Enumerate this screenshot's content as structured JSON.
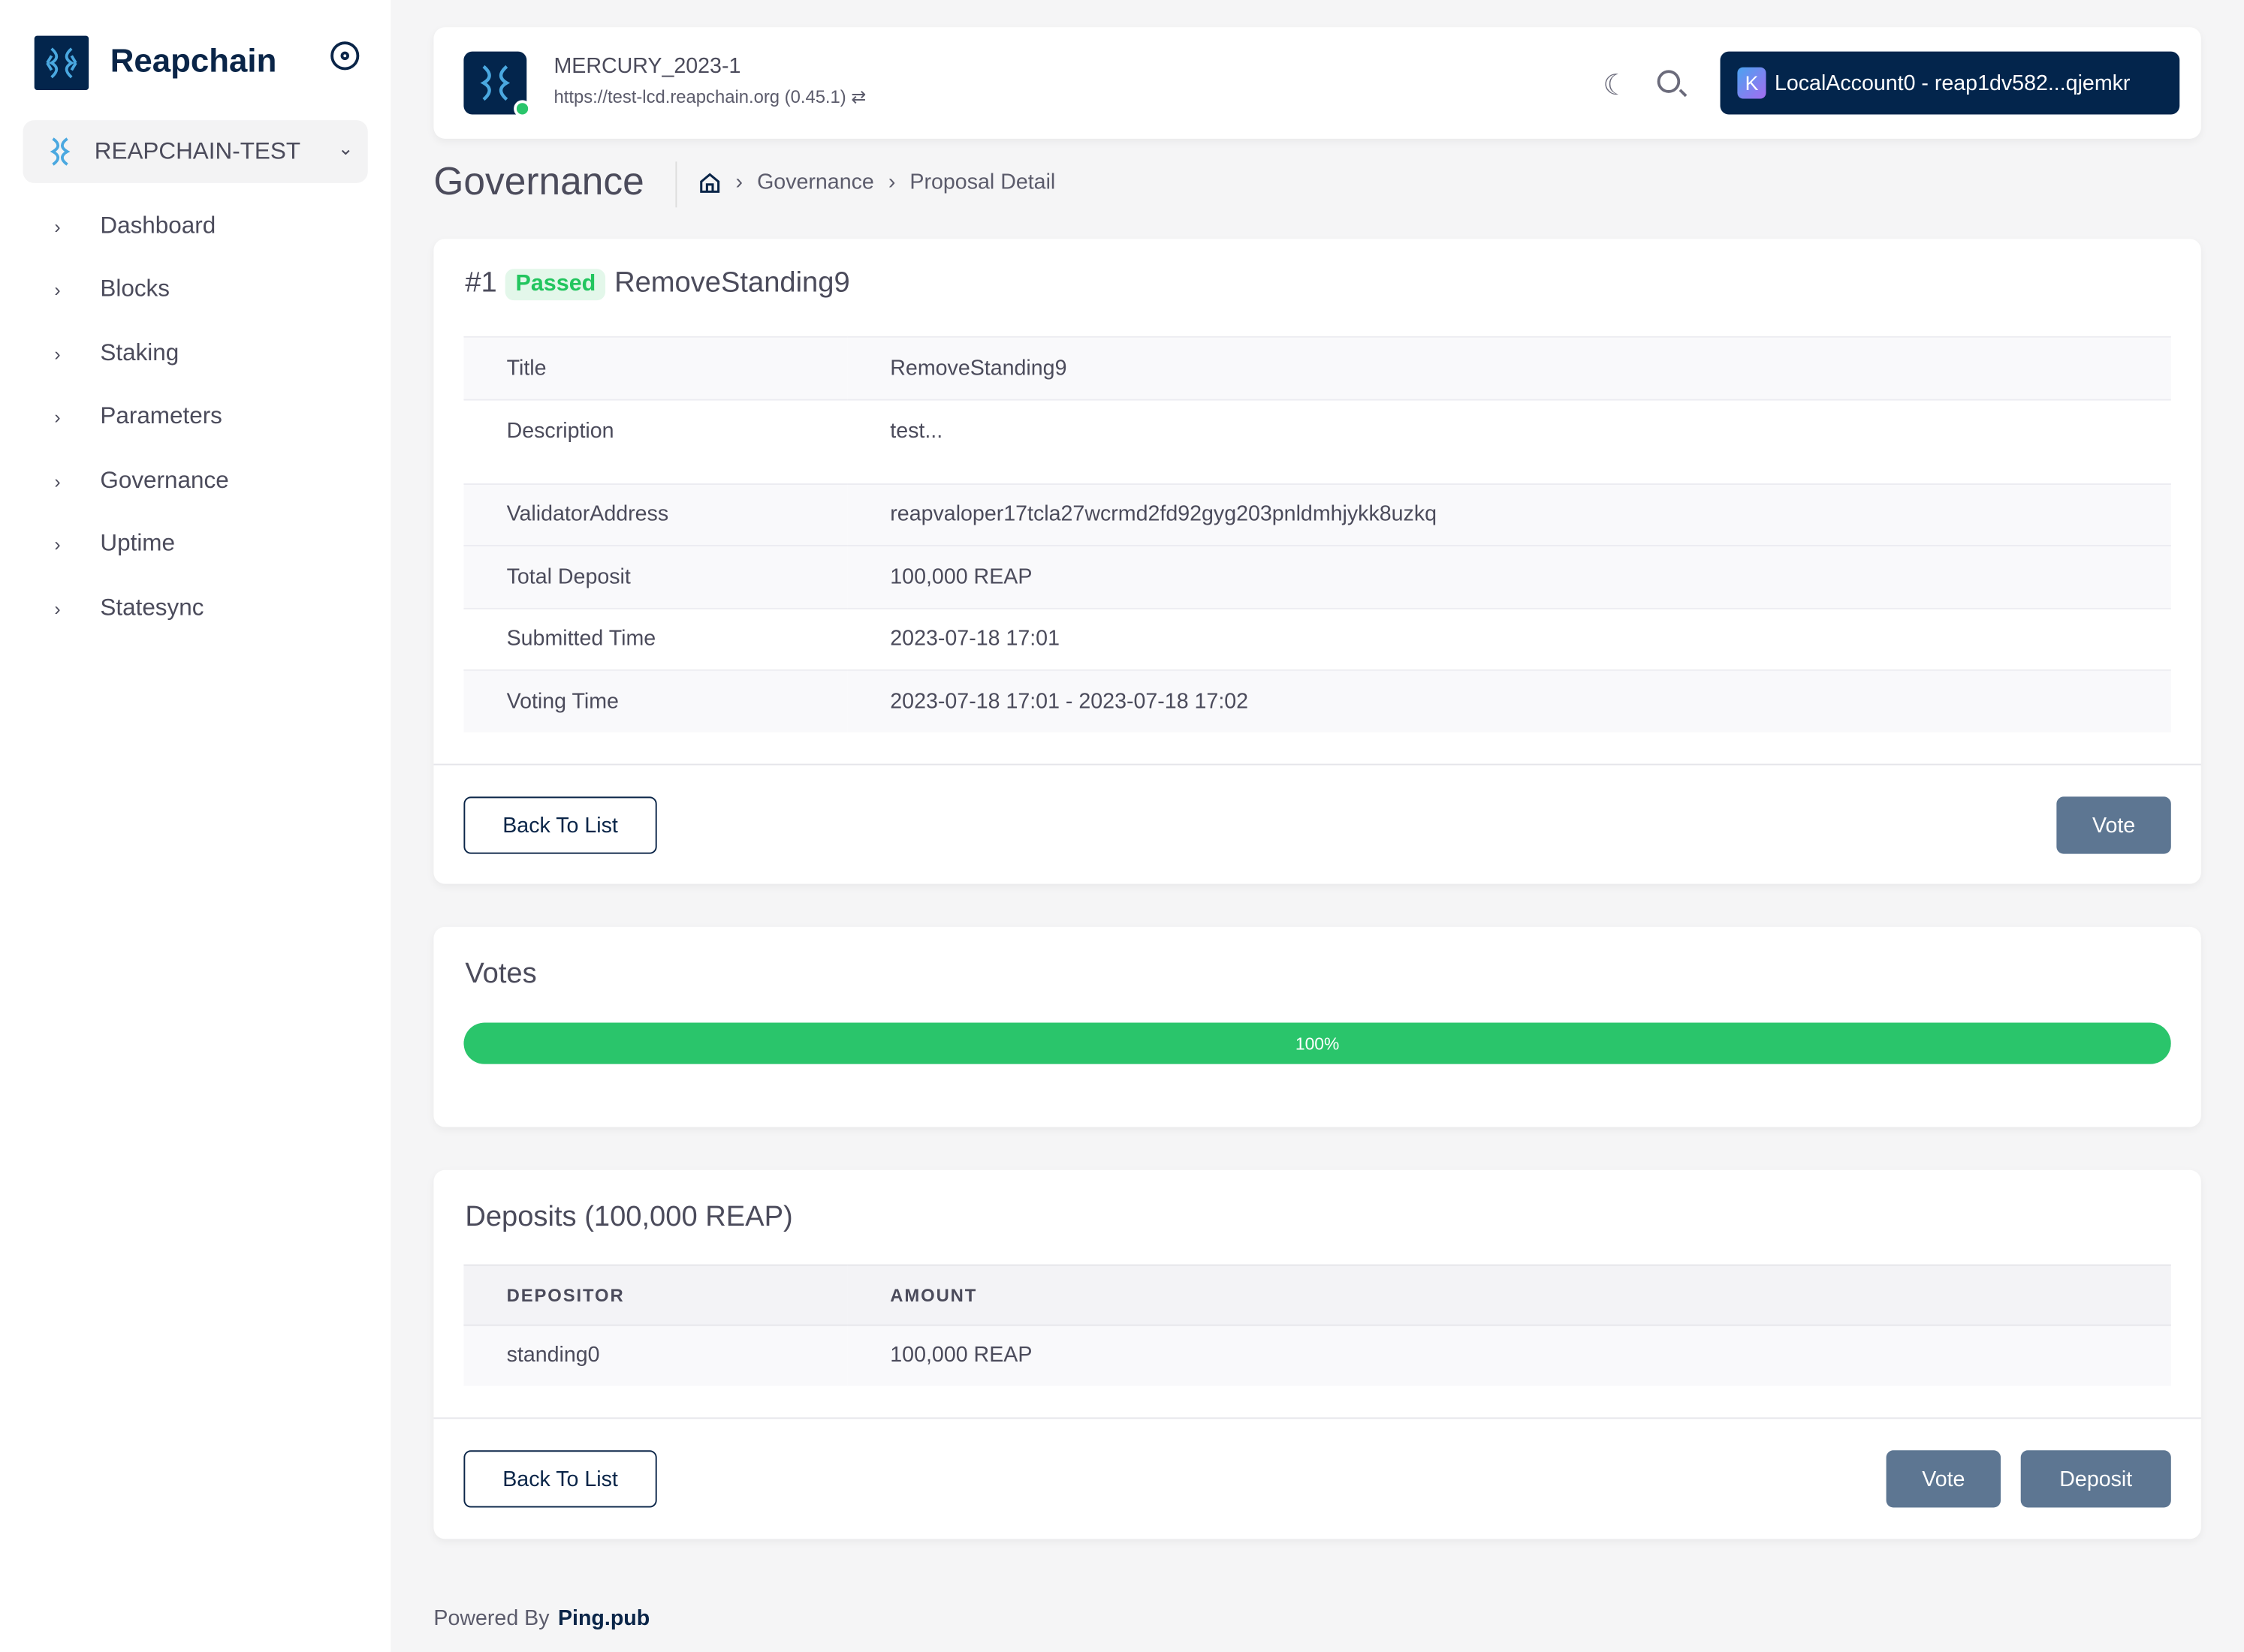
{
  "sidebar": {
    "brand": "Reapchain",
    "chain": "REAPCHAIN-TEST",
    "items": [
      {
        "label": "Dashboard"
      },
      {
        "label": "Blocks"
      },
      {
        "label": "Staking"
      },
      {
        "label": "Parameters"
      },
      {
        "label": "Governance"
      },
      {
        "label": "Uptime"
      },
      {
        "label": "Statesync"
      }
    ]
  },
  "header": {
    "chain_id": "MERCURY_2023-1",
    "endpoint": "https://test-lcd.reapchain.org (0.45.1)",
    "account_initial": "K",
    "account": "LocalAccount0 - reap1dv582...qjemkr"
  },
  "page": {
    "title": "Governance",
    "breadcrumbs": [
      "Governance",
      "Proposal Detail"
    ]
  },
  "proposal": {
    "id": "#1",
    "status": "Passed",
    "name": "RemoveStanding9",
    "rows": [
      {
        "label": "Title",
        "value": "RemoveStanding9"
      },
      {
        "label": "Description",
        "value": "test..."
      },
      {
        "label": "ValidatorAddress",
        "value": "reapvaloper17tcla27wcrmd2fd92gyg203pnldmhjykk8uzkq"
      },
      {
        "label": "Total Deposit",
        "value": "100,000 REAP"
      },
      {
        "label": "Submitted Time",
        "value": "2023-07-18 17:01"
      },
      {
        "label": "Voting Time",
        "value": "2023-07-18 17:01 - 2023-07-18 17:02"
      }
    ],
    "back_label": "Back To List",
    "vote_label": "Vote"
  },
  "votes": {
    "title": "Votes",
    "progress_percent": 100,
    "progress_label": "100%",
    "color": "#2ac56b"
  },
  "deposits": {
    "title": "Deposits (100,000 REAP)",
    "columns": [
      "DEPOSITOR",
      "AMOUNT"
    ],
    "rows": [
      {
        "depositor": "standing0",
        "amount": "100,000 REAP"
      }
    ],
    "back_label": "Back To List",
    "vote_label": "Vote",
    "deposit_label": "Deposit"
  },
  "footer": {
    "prefix": "Powered By",
    "brand": "Ping.pub"
  }
}
